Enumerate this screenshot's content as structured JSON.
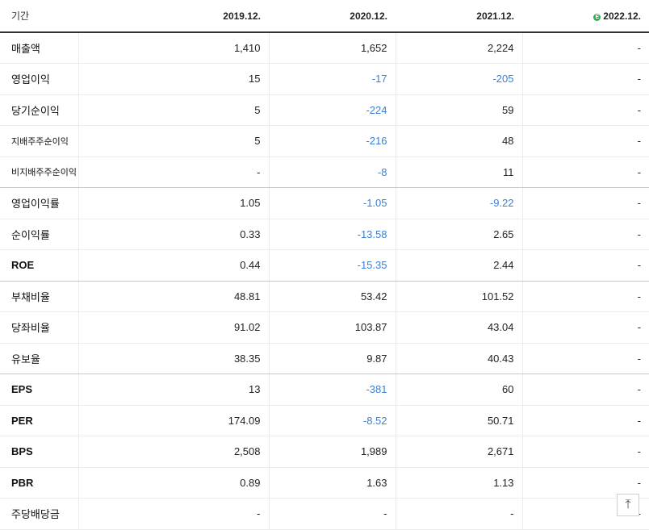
{
  "header": {
    "period_label": "기간",
    "estimate_badge": "E",
    "years": [
      "2019.12.",
      "2020.12.",
      "2021.12.",
      "2022.12."
    ]
  },
  "rows": [
    {
      "label": "매출액",
      "values": [
        "1,410",
        "1,652",
        "2,224",
        "-"
      ]
    },
    {
      "label": "영업이익",
      "values": [
        "15",
        "-17",
        "-205",
        "-"
      ]
    },
    {
      "label": "당기순이익",
      "values": [
        "5",
        "-224",
        "59",
        "-"
      ]
    },
    {
      "label": "지배주주순이익",
      "values": [
        "5",
        "-216",
        "48",
        "-"
      ]
    },
    {
      "label": "비지배주주순이익",
      "values": [
        "-",
        "-8",
        "11",
        "-"
      ]
    },
    {
      "label": "영업이익률",
      "values": [
        "1.05",
        "-1.05",
        "-9.22",
        "-"
      ]
    },
    {
      "label": "순이익률",
      "values": [
        "0.33",
        "-13.58",
        "2.65",
        "-"
      ]
    },
    {
      "label": "ROE",
      "values": [
        "0.44",
        "-15.35",
        "2.44",
        "-"
      ]
    },
    {
      "label": "부채비율",
      "values": [
        "48.81",
        "53.42",
        "101.52",
        "-"
      ]
    },
    {
      "label": "당좌비율",
      "values": [
        "91.02",
        "103.87",
        "43.04",
        "-"
      ]
    },
    {
      "label": "유보율",
      "values": [
        "38.35",
        "9.87",
        "40.43",
        "-"
      ]
    },
    {
      "label": "EPS",
      "values": [
        "13",
        "-381",
        "60",
        "-"
      ]
    },
    {
      "label": "PER",
      "values": [
        "174.09",
        "-8.52",
        "50.71",
        "-"
      ]
    },
    {
      "label": "BPS",
      "values": [
        "2,508",
        "1,989",
        "2,671",
        "-"
      ]
    },
    {
      "label": "PBR",
      "values": [
        "0.89",
        "1.63",
        "1.13",
        "-"
      ]
    },
    {
      "label": "주당배당금",
      "values": [
        "-",
        "-",
        "-",
        "-"
      ]
    }
  ],
  "negative_color": "#3a7fd5",
  "scroll_top_button": {
    "icon": "arrow-up-to-line-icon",
    "glyph": "⤒"
  }
}
